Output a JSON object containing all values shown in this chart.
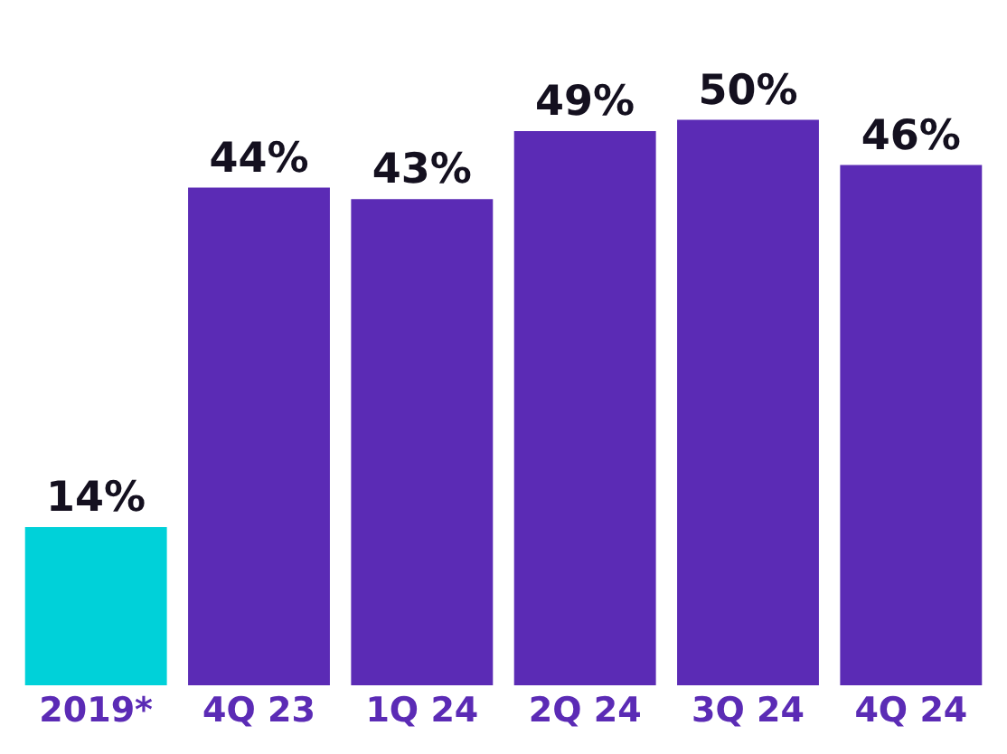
{
  "chart_data": {
    "type": "bar",
    "categories": [
      "2019*",
      "4Q 23",
      "1Q 24",
      "2Q 24",
      "3Q 24",
      "4Q 24"
    ],
    "values": [
      14,
      44,
      43,
      49,
      50,
      46
    ],
    "colors": [
      "#00d1d9",
      "#5b2bb5",
      "#5b2bb5",
      "#5b2bb5",
      "#5b2bb5",
      "#5b2bb5"
    ],
    "value_labels": [
      "14%",
      "44%",
      "43%",
      "49%",
      "50%",
      "46%"
    ]
  }
}
